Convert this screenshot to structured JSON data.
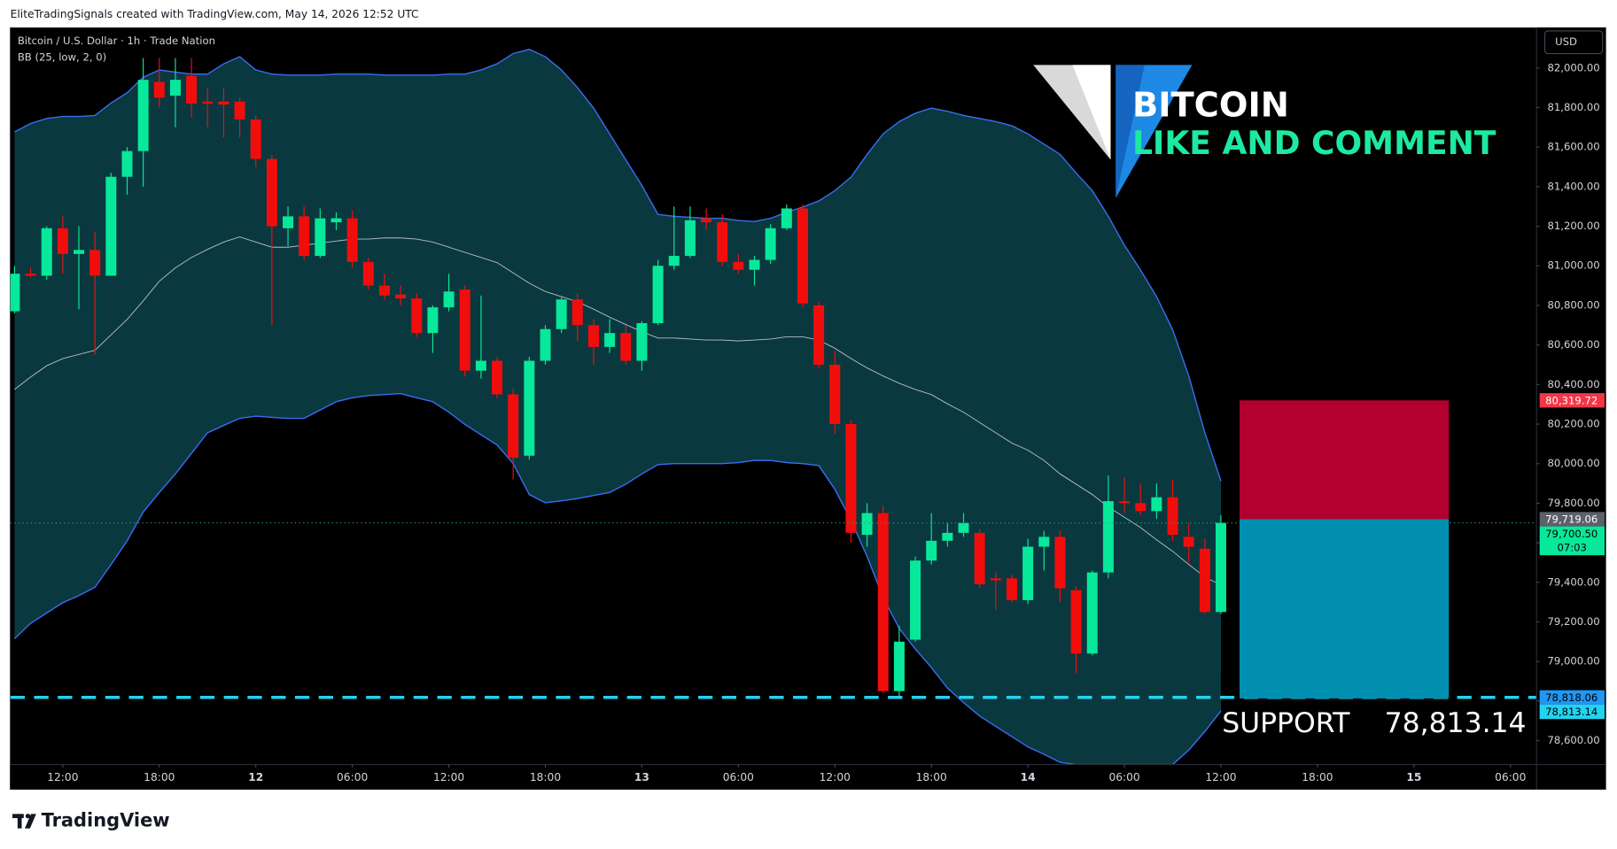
{
  "header": {
    "attribution": "EliteTradingSignals created with TradingView.com, May 14, 2026 12:52 UTC",
    "brand": "TradingView"
  },
  "chart_data": {
    "type": "candlestick",
    "title": "Bitcoin / U.S. Dollar · 1h · Trade Nation",
    "indicator": "BB (25, low, 2, 0)",
    "currency": "USD",
    "up_color": "#08e89a",
    "down_color": "#f20d0d",
    "x": [
      0,
      1,
      2,
      3,
      4,
      5,
      6,
      7,
      8,
      9,
      10,
      11,
      12,
      13,
      14,
      15,
      16,
      17,
      18,
      19,
      20,
      21,
      22,
      23,
      24,
      25,
      26,
      27,
      28,
      29,
      30,
      31,
      32,
      33,
      34,
      35,
      36,
      37,
      38,
      39,
      40,
      41,
      42,
      43,
      44,
      45,
      46,
      47,
      48,
      49,
      50,
      51,
      52,
      53,
      54,
      55,
      56,
      57,
      58,
      59,
      60,
      61,
      62,
      63,
      64,
      65,
      66,
      67,
      68,
      69,
      70,
      71,
      72,
      73,
      74,
      75
    ],
    "open": [
      80770,
      80960,
      80950,
      81190,
      81060,
      81080,
      80950,
      81450,
      81580,
      81930,
      81860,
      81960,
      81830,
      81830,
      81830,
      81740,
      81540,
      81190,
      81250,
      81050,
      81220,
      81240,
      81020,
      80900,
      80855,
      80835,
      80660,
      80790,
      80880,
      80470,
      80520,
      80350,
      80040,
      80520,
      80680,
      80830,
      80700,
      80590,
      80660,
      80520,
      80710,
      81000,
      81050,
      81240,
      81220,
      81020,
      80980,
      81030,
      81190,
      81290,
      80800,
      80500,
      80200,
      79640,
      79750,
      78850,
      79110,
      79510,
      79610,
      79650,
      79650,
      79420,
      79420,
      79310,
      79580,
      79630,
      79360,
      79040,
      79450,
      79810,
      79800,
      79760,
      79830,
      79630,
      79570,
      79250
    ],
    "high": [
      81000,
      80990,
      81200,
      81250,
      81200,
      81170,
      81470,
      81600,
      82050,
      82050,
      82050,
      82050,
      81900,
      81900,
      81850,
      81760,
      81560,
      81300,
      81300,
      81290,
      81270,
      81280,
      81040,
      80960,
      80900,
      80860,
      80800,
      80960,
      80900,
      80850,
      80540,
      80380,
      80540,
      80700,
      80840,
      80860,
      80730,
      80730,
      80700,
      80720,
      81030,
      81300,
      81300,
      81290,
      81260,
      81060,
      81050,
      81210,
      81310,
      81310,
      80820,
      80570,
      80220,
      79800,
      79790,
      79180,
      79530,
      79750,
      79700,
      79750,
      79670,
      79450,
      79440,
      79620,
      79660,
      79660,
      79380,
      79460,
      79940,
      79930,
      79900,
      79900,
      79920,
      79700,
      79620,
      79740
    ],
    "low": [
      80760,
      80940,
      80930,
      80960,
      80780,
      80550,
      80950,
      81360,
      81400,
      81800,
      81700,
      81750,
      81700,
      81650,
      81650,
      81500,
      80700,
      81100,
      81030,
      81040,
      81180,
      80990,
      80880,
      80830,
      80800,
      80640,
      80560,
      80770,
      80440,
      80430,
      80330,
      79920,
      80020,
      80500,
      80660,
      80620,
      80500,
      80560,
      80500,
      80470,
      80700,
      80980,
      81040,
      81180,
      81000,
      80960,
      80900,
      81010,
      81180,
      80790,
      80480,
      80150,
      79600,
      79580,
      78840,
      78820,
      79100,
      79490,
      79580,
      79630,
      79370,
      79260,
      79300,
      79290,
      79460,
      79300,
      78940,
      79030,
      79420,
      79750,
      79740,
      79720,
      79610,
      79500,
      79240,
      79240
    ],
    "close": [
      80960,
      80950,
      81190,
      81060,
      81080,
      80950,
      81450,
      81580,
      81940,
      81850,
      81940,
      81820,
      81820,
      81815,
      81740,
      81540,
      81200,
      81250,
      81050,
      81240,
      81240,
      81020,
      80900,
      80850,
      80835,
      80660,
      80790,
      80870,
      80470,
      80520,
      80350,
      80030,
      80520,
      80680,
      80830,
      80700,
      80590,
      80660,
      80520,
      80710,
      81000,
      81050,
      81230,
      81220,
      81020,
      80980,
      81030,
      81190,
      81290,
      80810,
      80500,
      80200,
      79650,
      79750,
      78850,
      79100,
      79510,
      79610,
      79650,
      79700,
      79390,
      79410,
      79310,
      79580,
      79630,
      79370,
      79040,
      79450,
      79810,
      79800,
      79760,
      79830,
      79640,
      79580,
      79250,
      79700.5
    ],
    "bollinger": {
      "line_color": "#3a6df0",
      "middle_color": "#b8bcc4",
      "fill": "#0a383f",
      "upper": [
        81677,
        81719,
        81745,
        81755,
        81755,
        81760,
        81823,
        81875,
        81953,
        81990,
        81979,
        81969,
        81969,
        82021,
        82057,
        81990,
        81969,
        81964,
        81964,
        81964,
        81969,
        81969,
        81969,
        81964,
        81964,
        81964,
        81964,
        81969,
        81969,
        81990,
        82021,
        82073,
        82094,
        82057,
        81990,
        81901,
        81797,
        81667,
        81536,
        81406,
        81260,
        81250,
        81245,
        81240,
        81240,
        81229,
        81224,
        81240,
        81271,
        81297,
        81328,
        81380,
        81448,
        81563,
        81667,
        81729,
        81771,
        81797,
        81781,
        81760,
        81745,
        81729,
        81708,
        81667,
        81615,
        81563,
        81469,
        81380,
        81250,
        81104,
        80979,
        80844,
        80677,
        80443,
        80156,
        79912
      ],
      "middle": [
        80375,
        80438,
        80495,
        80531,
        80552,
        80573,
        80651,
        80729,
        80823,
        80922,
        80990,
        81042,
        81083,
        81120,
        81146,
        81120,
        81094,
        81094,
        81104,
        81115,
        81125,
        81135,
        81135,
        81141,
        81141,
        81135,
        81120,
        81094,
        81068,
        81042,
        81016,
        80964,
        80912,
        80870,
        80844,
        80818,
        80781,
        80740,
        80703,
        80667,
        80635,
        80635,
        80630,
        80625,
        80625,
        80620,
        80625,
        80630,
        80641,
        80641,
        80625,
        80583,
        80531,
        80484,
        80443,
        80406,
        80375,
        80349,
        80302,
        80260,
        80208,
        80156,
        80104,
        80068,
        80016,
        79948,
        79896,
        79844,
        79781,
        79729,
        79677,
        79615,
        79557,
        79490,
        79427,
        79386
      ],
      "lower": [
        79115,
        79193,
        79245,
        79297,
        79333,
        79375,
        79490,
        79610,
        79755,
        79854,
        79948,
        80052,
        80156,
        80193,
        80229,
        80240,
        80234,
        80229,
        80229,
        80271,
        80313,
        80333,
        80344,
        80349,
        80354,
        80333,
        80313,
        80260,
        80198,
        80146,
        80094,
        80000,
        79844,
        79802,
        79812,
        79823,
        79839,
        79854,
        79896,
        79948,
        79995,
        80000,
        80000,
        80000,
        80000,
        80005,
        80016,
        80016,
        80005,
        80000,
        79990,
        79870,
        79714,
        79531,
        79323,
        79167,
        79063,
        78969,
        78865,
        78792,
        78724,
        78672,
        78620,
        78568,
        78531,
        78490,
        78479,
        78479,
        78479,
        78479,
        78479,
        78479,
        78479,
        78552,
        78646,
        78750
      ]
    },
    "xlim": [
      -0.26,
      94.62
    ],
    "xticks": [
      {
        "value": 3,
        "label": "12:00"
      },
      {
        "value": 9,
        "label": "18:00"
      },
      {
        "value": 15,
        "label": "12"
      },
      {
        "value": 21,
        "label": "06:00"
      },
      {
        "value": 27,
        "label": "12:00"
      },
      {
        "value": 33,
        "label": "18:00"
      },
      {
        "value": 39,
        "label": "13"
      },
      {
        "value": 45,
        "label": "06:00"
      },
      {
        "value": 51,
        "label": "12:00"
      },
      {
        "value": 57,
        "label": "18:00"
      },
      {
        "value": 63,
        "label": "14"
      },
      {
        "value": 69,
        "label": "06:00"
      },
      {
        "value": 75,
        "label": "12:00"
      },
      {
        "value": 81,
        "label": "18:00"
      },
      {
        "value": 87,
        "label": "15"
      },
      {
        "value": 93,
        "label": "06:00"
      }
    ],
    "ylim": [
      78479,
      82203
    ],
    "yticks": [
      {
        "value": 78600,
        "label": "78,600.00"
      },
      {
        "value": 78800,
        "label": "78,800.00"
      },
      {
        "value": 79000,
        "label": "79,000.00"
      },
      {
        "value": 79200,
        "label": "79,200.00"
      },
      {
        "value": 79400,
        "label": "79,400.00"
      },
      {
        "value": 79600,
        "label": "79,600.00"
      },
      {
        "value": 79800,
        "label": "79,800.00"
      },
      {
        "value": 80000,
        "label": "80,000.00"
      },
      {
        "value": 80200,
        "label": "80,200.00"
      },
      {
        "value": 80400,
        "label": "80,400.00"
      },
      {
        "value": 80600,
        "label": "80,600.00"
      },
      {
        "value": 80800,
        "label": "80,800.00"
      },
      {
        "value": 81000,
        "label": "81,000.00"
      },
      {
        "value": 81200,
        "label": "81,200.00"
      },
      {
        "value": 81400,
        "label": "81,400.00"
      },
      {
        "value": 81600,
        "label": "81,600.00"
      },
      {
        "value": 81800,
        "label": "81,800.00"
      },
      {
        "value": 82000,
        "label": "82,000.00"
      }
    ],
    "grid": false,
    "position": {
      "stop": 80319.72,
      "entry": 79719.06,
      "target": 78813.14,
      "stop_color": "#b2002f",
      "target_color": "#008fb0"
    },
    "hlines": [
      {
        "value": 78818.06,
        "style": "dashed",
        "color": "#22d3ee"
      },
      {
        "value": 79700.5,
        "style": "dotted",
        "color": "#2a9d6a"
      }
    ],
    "price_tags": [
      {
        "value": 80319.72,
        "label": "80,319.72",
        "color": "#f23645",
        "text_color": "#ffffff"
      },
      {
        "value": 79719.06,
        "label": "79,719.06",
        "color": "#5d606b",
        "text_color": "#ffffff"
      },
      {
        "value": 79700.5,
        "label": "79,700.50",
        "color": "#08e89a",
        "text_color": "#000000",
        "countdown": "07:03"
      },
      {
        "value": 78818.06,
        "label": "78,818.06",
        "color": "#2196f3",
        "text_color": "#000000"
      },
      {
        "value": 78813.14,
        "label": "78,813.14",
        "color": "#22d3ee",
        "text_color": "#000000"
      }
    ],
    "annotations": {
      "headline": "BITCOIN",
      "subline": "LIKE AND COMMENT",
      "support_label": "SUPPORT",
      "support_value": {
        "value": 78813.14,
        "label": "78,813.14"
      }
    }
  }
}
